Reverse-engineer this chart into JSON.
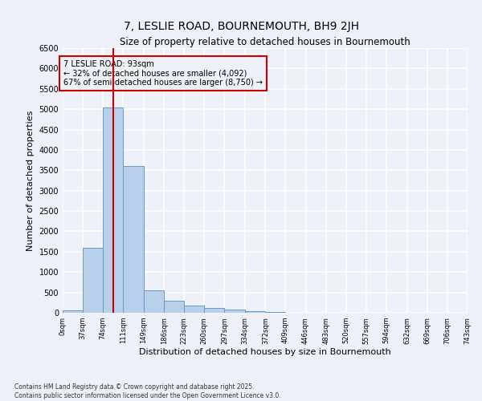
{
  "title": "7, LESLIE ROAD, BOURNEMOUTH, BH9 2JH",
  "subtitle": "Size of property relative to detached houses in Bournemouth",
  "xlabel": "Distribution of detached houses by size in Bournemouth",
  "ylabel": "Number of detached properties",
  "footnote1": "Contains HM Land Registry data © Crown copyright and database right 2025.",
  "footnote2": "Contains public sector information licensed under the Open Government Licence v3.0.",
  "annotation_title": "7 LESLIE ROAD: 93sqm",
  "annotation_line1": "← 32% of detached houses are smaller (4,092)",
  "annotation_line2": "67% of semi-detached houses are larger (8,750) →",
  "property_size": 93,
  "bin_edges": [
    0,
    37,
    74,
    111,
    149,
    186,
    223,
    260,
    297,
    334,
    372,
    409,
    446,
    483,
    520,
    557,
    594,
    632,
    669,
    706,
    743
  ],
  "bar_heights": [
    60,
    1600,
    5050,
    3600,
    550,
    300,
    175,
    125,
    75,
    30,
    10,
    5,
    3,
    2,
    1,
    1,
    0,
    0,
    0,
    0
  ],
  "bar_color": "#b8d0ea",
  "bar_edge_color": "#6699cc",
  "vline_color": "#cc0000",
  "annotation_box_color": "#cc0000",
  "background_color": "#eef2f8",
  "grid_color": "#ffffff",
  "ylim": [
    0,
    6500
  ],
  "yticks": [
    0,
    500,
    1000,
    1500,
    2000,
    2500,
    3000,
    3500,
    4000,
    4500,
    5000,
    5500,
    6000,
    6500
  ]
}
